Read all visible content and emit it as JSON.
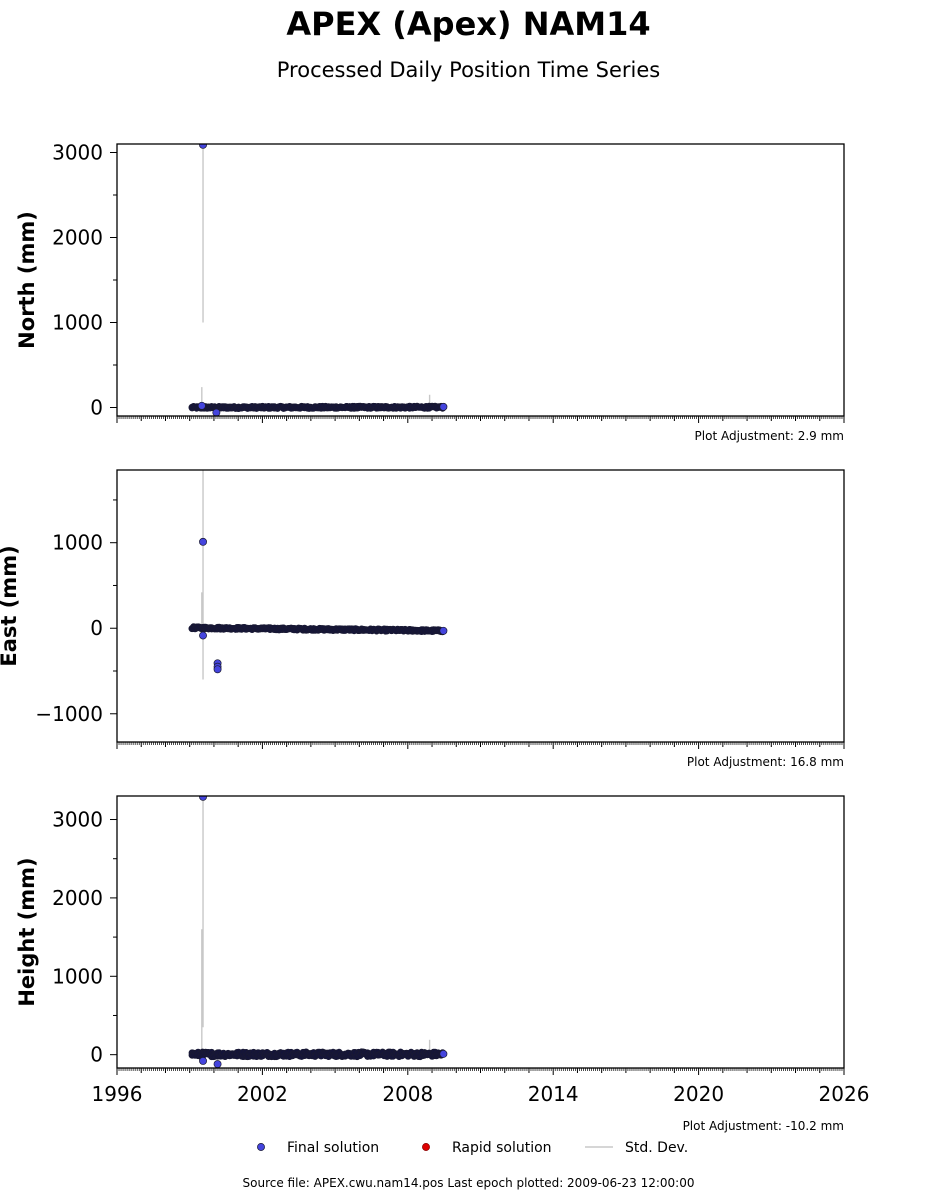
{
  "header": {
    "title": "APEX (Apex) NAM14",
    "subtitle": "Processed Daily Position Time Series"
  },
  "legend": {
    "final_label": "Final solution",
    "rapid_label": "Rapid solution",
    "std_label": "Std. Dev.",
    "placement": "bottom-center"
  },
  "footer": {
    "source": "Source file: APEX.cwu.nam14.pos  Last epoch plotted: 2009-06-23 12:00:00"
  },
  "colors": {
    "final": "#4444dd",
    "final_edge": "#1a1a33",
    "rapid": "#dd0000",
    "std": "#c8c8c8",
    "band": "#14143a"
  },
  "chart_data": [
    {
      "type": "scatter",
      "id": "north",
      "ylabel": "North (mm)",
      "adjustment": "Plot Adjustment: 2.9 mm",
      "xlim": [
        1996,
        2026
      ],
      "ylim": [
        -100,
        3100
      ],
      "xticks": [
        1996,
        2002,
        2008,
        2014,
        2020,
        2026
      ],
      "yticks": [
        0,
        1000,
        2000,
        3000
      ],
      "ytick_labels": [
        "0",
        "1000",
        "2000",
        "3000"
      ],
      "xtick_labels_visible": false,
      "band": {
        "x": [
          1999.1,
          2009.47
        ],
        "center_start": 0,
        "center_end": 3,
        "spread": 12
      },
      "outliers": [
        {
          "x": 1999.55,
          "y": 3090
        },
        {
          "x": 2000.1,
          "y": -60
        },
        {
          "x": 1999.5,
          "y": 20
        },
        {
          "x": 2009.47,
          "y": 8
        }
      ],
      "std_bars": [
        {
          "x": 1999.55,
          "low": 1000,
          "high": 3090
        },
        {
          "x": 1999.5,
          "low": -30,
          "high": 240
        },
        {
          "x": 2008.9,
          "low": -20,
          "high": 150
        }
      ],
      "grid": false
    },
    {
      "type": "scatter",
      "id": "east",
      "ylabel": "East (mm)",
      "adjustment": "Plot Adjustment: 16.8 mm",
      "xlim": [
        1996,
        2026
      ],
      "ylim": [
        -1330,
        1850
      ],
      "xticks": [
        1996,
        2002,
        2008,
        2014,
        2020,
        2026
      ],
      "yticks": [
        -1000,
        0,
        1000
      ],
      "ytick_labels": [
        "−1000",
        "0",
        "1000"
      ],
      "xtick_labels_visible": false,
      "band": {
        "x": [
          1999.1,
          2009.47
        ],
        "center_start": 5,
        "center_end": -30,
        "spread": 12
      },
      "outliers": [
        {
          "x": 1999.55,
          "y": 1010
        },
        {
          "x": 1999.55,
          "y": -85
        },
        {
          "x": 2000.15,
          "y": -410
        },
        {
          "x": 2000.15,
          "y": -450
        },
        {
          "x": 2000.15,
          "y": -480
        },
        {
          "x": 2009.47,
          "y": -30
        }
      ],
      "std_bars": [
        {
          "x": 1999.55,
          "low": -600,
          "high": 1850
        },
        {
          "x": 1999.5,
          "low": -100,
          "high": 420
        }
      ],
      "grid": false
    },
    {
      "type": "scatter",
      "id": "height",
      "ylabel": "Height (mm)",
      "adjustment": "Plot Adjustment: -10.2 mm",
      "xlim": [
        1996,
        2026
      ],
      "ylim": [
        -170,
        3300
      ],
      "xticks": [
        1996,
        2002,
        2008,
        2014,
        2020,
        2026
      ],
      "yticks": [
        0,
        1000,
        2000,
        3000
      ],
      "ytick_labels": [
        "0",
        "1000",
        "2000",
        "3000"
      ],
      "xtick_labels_visible": true,
      "band": {
        "x": [
          1999.1,
          2009.47
        ],
        "center_start": 5,
        "center_end": 5,
        "spread": 30
      },
      "outliers": [
        {
          "x": 1999.55,
          "y": 3290
        },
        {
          "x": 1999.55,
          "y": -80
        },
        {
          "x": 2000.15,
          "y": -120
        },
        {
          "x": 2009.47,
          "y": 10
        }
      ],
      "std_bars": [
        {
          "x": 1999.55,
          "low": 350,
          "high": 3290
        },
        {
          "x": 1999.5,
          "low": -40,
          "high": 1600
        },
        {
          "x": 2008.9,
          "low": -20,
          "high": 190
        }
      ],
      "grid": false
    }
  ]
}
